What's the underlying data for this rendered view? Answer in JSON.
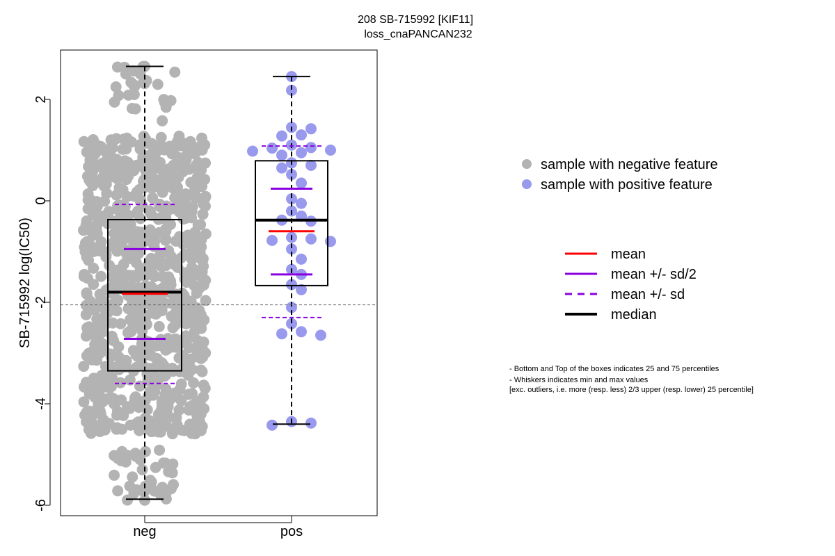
{
  "chart_data": {
    "type": "scatter",
    "title_lines": [
      "208 SB-715992 [KIF11]",
      "loss_cnaPANCAN232"
    ],
    "ylabel": "SB-715992 log(IC50)",
    "ylim": [
      -6.3,
      3.0
    ],
    "yticks": [
      "-6",
      "-4",
      "-2",
      "0",
      "2"
    ],
    "categories": [
      "neg",
      "pos"
    ],
    "reference_line": -2.05,
    "colors": {
      "neg": "#b3b3b3",
      "pos": "#9999ee",
      "mean": "#ff0000",
      "sd": "#8a00e0",
      "median": "#000000"
    },
    "groups": [
      {
        "name": "neg",
        "point_count": 900,
        "point_range": [
          -5.9,
          2.65
        ],
        "min": -5.88,
        "q1": -3.35,
        "median": -1.8,
        "q3": -0.37,
        "max": 2.65,
        "mean": -1.83,
        "mean_minus_half_sd": -2.72,
        "mean_plus_half_sd": -0.95,
        "mean_minus_sd": -3.6,
        "mean_plus_sd": -0.07
      },
      {
        "name": "pos",
        "points": [
          2.45,
          2.18,
          1.45,
          1.42,
          1.3,
          1.28,
          1.1,
          1.05,
          1.04,
          1.0,
          0.98,
          0.95,
          0.9,
          0.75,
          0.7,
          0.65,
          0.52,
          0.35,
          0.04,
          -0.05,
          -0.2,
          -0.3,
          -0.38,
          -0.4,
          -0.72,
          -0.75,
          -0.78,
          -0.8,
          -0.95,
          -1.15,
          -1.35,
          -1.45,
          -1.65,
          -1.75,
          -2.1,
          -2.42,
          -2.58,
          -2.62,
          -2.65,
          -4.35,
          -4.38,
          -4.42
        ],
        "min": -4.4,
        "q1": -1.67,
        "median": -0.38,
        "q3": 0.79,
        "max": 2.45,
        "mean": -0.6,
        "mean_minus_half_sd": -1.45,
        "mean_plus_half_sd": 0.24,
        "mean_minus_sd": -2.3,
        "mean_plus_sd": 1.08
      }
    ],
    "legend_points": [
      {
        "label": "sample with negative feature",
        "color": "#b3b3b3"
      },
      {
        "label": "sample with positive feature",
        "color": "#9999ee"
      }
    ],
    "legend_lines": [
      {
        "label": "mean",
        "color": "#ff0000",
        "style": "solid"
      },
      {
        "label": "mean +/- sd/2",
        "color": "#8a00e0",
        "style": "solid"
      },
      {
        "label": "mean +/- sd",
        "color": "#8a00e0",
        "style": "dashed"
      },
      {
        "label": "median",
        "color": "#000000",
        "style": "thick"
      }
    ],
    "notes": [
      "- Bottom and Top of the boxes indicates 25 and 75 percentiles",
      "- Whiskers indicates min and max values",
      "[exc. outliers, i.e. more (resp. less) 2/3 upper (resp. lower) 25 percentile]"
    ]
  }
}
